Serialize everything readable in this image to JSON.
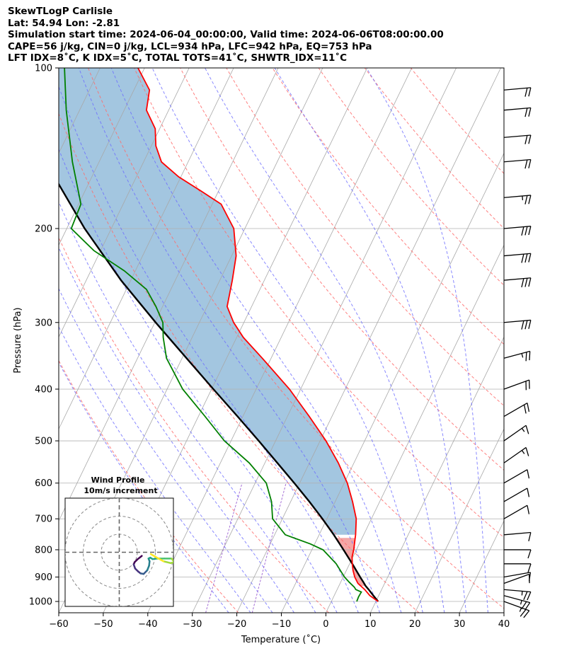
{
  "header": {
    "line1": "SkewTLogP Carlisle",
    "line2": "Lat: 54.94   Lon: -2.81",
    "line3": "Simulation start time: 2024-06-04_00:00:00, Valid time: 2024-06-06T08:00:00.00",
    "line4": "CAPE=56 j/kg, CIN=0 j/kg, LCL=934 hPa, LFC=942 hPa, EQ=753 hPa",
    "line5": "LFT IDX=8˚C, K IDX=5˚C, TOTAL TOTS=41˚C, SHWTR_IDX=11˚C"
  },
  "colors": {
    "temperature": "#ff0000",
    "dewpoint": "#008000",
    "parcel": "#000000",
    "cape_fill": "#a3c6e0",
    "cin_fill": "#f4a6a6",
    "dry_adiabat": "#ff6b6b",
    "moist_adiabat": "#6b6bff",
    "mixing_ratio": "#9b5fd1",
    "isotherm": "#a8a8a8"
  },
  "chart_data": {
    "type": "skewt",
    "xlabel": "Temperature (˚C)",
    "ylabel": "Pressure (hPa)",
    "xlim": [
      -60,
      40
    ],
    "ylim": [
      1050,
      100
    ],
    "yscale": "log",
    "grid": true,
    "x_ticks": [
      "−60",
      "−50",
      "−40",
      "−30",
      "−20",
      "−10",
      "0",
      "10",
      "20",
      "30",
      "40"
    ],
    "x_tick_values": [
      -60,
      -50,
      -40,
      -30,
      -20,
      -10,
      0,
      10,
      20,
      30,
      40
    ],
    "y_ticks": [
      "1000",
      "900",
      "800",
      "700",
      "600",
      "500",
      "400",
      "300",
      "200",
      "100"
    ],
    "y_tick_values": [
      1000,
      900,
      800,
      700,
      600,
      500,
      400,
      300,
      200,
      100
    ],
    "temperature": {
      "p": [
        1000,
        975,
        950,
        925,
        900,
        875,
        850,
        825,
        800,
        775,
        750,
        700,
        650,
        600,
        550,
        500,
        450,
        400,
        350,
        320,
        300,
        280,
        250,
        225,
        200,
        180,
        170,
        160,
        150,
        140,
        130,
        120,
        110,
        100
      ],
      "t": [
        10.5,
        8.0,
        6.2,
        4.0,
        2.6,
        1.5,
        0.6,
        -0.2,
        -0.6,
        -1.2,
        -1.8,
        -3.4,
        -6.1,
        -9.3,
        -13.5,
        -18.7,
        -25.1,
        -32.5,
        -42.0,
        -48.5,
        -52.3,
        -55.5,
        -57.2,
        -59.0,
        -62.5,
        -68.0,
        -74.0,
        -80.5,
        -86.0,
        -89.0,
        -91.0,
        -95.0,
        -96.5,
        -101.5
      ]
    },
    "dewpoint": {
      "p": [
        1000,
        980,
        960,
        950,
        940,
        920,
        900,
        880,
        850,
        800,
        780,
        750,
        700,
        650,
        600,
        550,
        500,
        450,
        400,
        350,
        320,
        300,
        280,
        260,
        240,
        220,
        200,
        180,
        150,
        120,
        100
      ],
      "td": [
        5.7,
        5.6,
        5.7,
        4.2,
        3.6,
        1.9,
        0.3,
        -1.0,
        -3.0,
        -7.5,
        -11.0,
        -17.6,
        -22.2,
        -24.3,
        -27.5,
        -33.5,
        -41.5,
        -48.5,
        -56.5,
        -63.5,
        -66.5,
        -68.2,
        -71.5,
        -75.5,
        -82.5,
        -91.5,
        -99.0,
        -99.5,
        -106.0,
        -113.0,
        -118.0
      ]
    },
    "parcel": {
      "p": [
        1000,
        975,
        950,
        935,
        920,
        900,
        850,
        800,
        750,
        700,
        650,
        600,
        550,
        500,
        450,
        400,
        350,
        300,
        250,
        200,
        150,
        100
      ],
      "t": [
        10.5,
        8.8,
        7.1,
        6.0,
        5.1,
        3.8,
        0.6,
        -2.9,
        -6.7,
        -11.0,
        -15.8,
        -21.2,
        -27.2,
        -33.8,
        -41.2,
        -49.6,
        -59.0,
        -69.8,
        -82.2,
        -96.0,
        -112.0,
        -130.0
      ]
    },
    "winds": [
      {
        "p": 1000,
        "speed_kt": 25,
        "dir_deg": 250
      },
      {
        "p": 975,
        "speed_kt": 25,
        "dir_deg": 255
      },
      {
        "p": 950,
        "speed_kt": 25,
        "dir_deg": 265
      },
      {
        "p": 925,
        "speed_kt": 10,
        "dir_deg": 290
      },
      {
        "p": 900,
        "speed_kt": 10,
        "dir_deg": 280
      },
      {
        "p": 850,
        "speed_kt": 10,
        "dir_deg": 270
      },
      {
        "p": 800,
        "speed_kt": 10,
        "dir_deg": 270
      },
      {
        "p": 750,
        "speed_kt": 10,
        "dir_deg": 275
      },
      {
        "p": 700,
        "speed_kt": 10,
        "dir_deg": 300
      },
      {
        "p": 650,
        "speed_kt": 10,
        "dir_deg": 300
      },
      {
        "p": 600,
        "speed_kt": 10,
        "dir_deg": 300
      },
      {
        "p": 550,
        "speed_kt": 15,
        "dir_deg": 305
      },
      {
        "p": 500,
        "speed_kt": 15,
        "dir_deg": 305
      },
      {
        "p": 450,
        "speed_kt": 20,
        "dir_deg": 300
      },
      {
        "p": 400,
        "speed_kt": 20,
        "dir_deg": 290
      },
      {
        "p": 350,
        "speed_kt": 25,
        "dir_deg": 285
      },
      {
        "p": 300,
        "speed_kt": 30,
        "dir_deg": 275
      },
      {
        "p": 250,
        "speed_kt": 30,
        "dir_deg": 275
      },
      {
        "p": 225,
        "speed_kt": 30,
        "dir_deg": 275
      },
      {
        "p": 200,
        "speed_kt": 30,
        "dir_deg": 275
      },
      {
        "p": 175,
        "speed_kt": 25,
        "dir_deg": 275
      },
      {
        "p": 150,
        "speed_kt": 20,
        "dir_deg": 275
      },
      {
        "p": 135,
        "speed_kt": 20,
        "dir_deg": 275
      },
      {
        "p": 120,
        "speed_kt": 20,
        "dir_deg": 275
      },
      {
        "p": 110,
        "speed_kt": 20,
        "dir_deg": 275
      }
    ],
    "hodograph": {
      "title_line1": "Wind Profile",
      "title_line2": "10m/s increment",
      "rings_ms": [
        10,
        20,
        30
      ],
      "range_ms": 30,
      "u_ms": [
        12.5,
        10.0,
        8.5,
        8.0,
        8.8,
        10.4,
        11.8,
        13.5,
        15.5,
        16.5,
        16.8,
        16.2,
        17.2,
        18.5,
        21.0,
        25.0,
        29.0,
        30.5,
        28.5,
        24.5,
        20.0,
        17.5
      ],
      "v_ms": [
        -2.0,
        -4.0,
        -5.5,
        -6.8,
        -9.0,
        -10.6,
        -11.7,
        -12.0,
        -10.0,
        -7.5,
        -5.0,
        -3.5,
        -3.0,
        -3.8,
        -3.5,
        -3.5,
        -3.5,
        -5.5,
        -6.0,
        -5.0,
        -2.5,
        -1.0
      ],
      "colormap": "viridis"
    }
  }
}
